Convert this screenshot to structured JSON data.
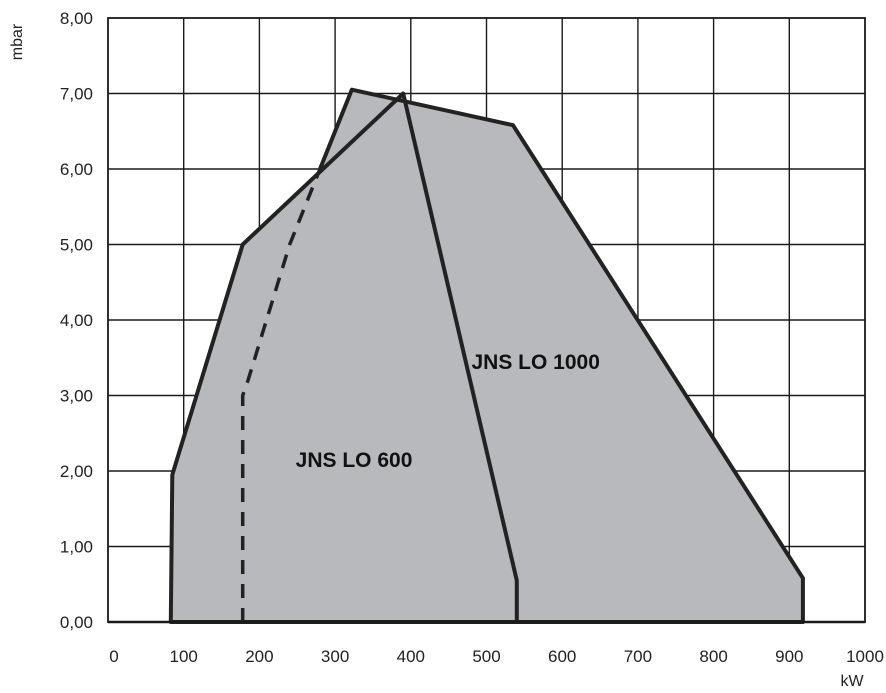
{
  "chart_data": {
    "type": "area",
    "title": "",
    "xlabel": "kW",
    "ylabel": "mbar",
    "xlim": [
      0,
      1000
    ],
    "ylim": [
      0,
      8
    ],
    "grid": true,
    "x_ticks": [
      "0",
      "100",
      "200",
      "300",
      "400",
      "500",
      "600",
      "700",
      "800",
      "900",
      "1000"
    ],
    "y_ticks": [
      "0,00",
      "1,00",
      "2,00",
      "3,00",
      "4,00",
      "5,00",
      "6,00",
      "7,00",
      "8,00"
    ],
    "fill_color": "#b8b9bd",
    "line_color": "#222222",
    "series": [
      {
        "name": "JNS LO 600",
        "points": [
          [
            83,
            0
          ],
          [
            85,
            1.95
          ],
          [
            178,
            5.0
          ],
          [
            390,
            7.0
          ],
          [
            540,
            0.55
          ],
          [
            540,
            0
          ]
        ]
      },
      {
        "name": "JNS LO 1000",
        "points": [
          [
            178,
            0
          ],
          [
            178,
            3.0
          ],
          [
            185,
            3.2
          ],
          [
            240,
            5.0
          ],
          [
            280,
            6.0
          ],
          [
            322,
            7.05
          ],
          [
            535,
            6.58
          ],
          [
            918,
            0.58
          ],
          [
            918,
            0
          ]
        ]
      }
    ],
    "lower_limit_line": {
      "style": "dashed",
      "points": [
        [
          178,
          0
        ],
        [
          178,
          3.0
        ],
        [
          185,
          3.2
        ],
        [
          240,
          5.0
        ],
        [
          280,
          6.0
        ]
      ]
    },
    "annotations": [
      {
        "text": "JNS LO 600",
        "x": 325,
        "y": 2.05
      },
      {
        "text": "JNS LO 1000",
        "x": 565,
        "y": 3.35
      }
    ]
  }
}
